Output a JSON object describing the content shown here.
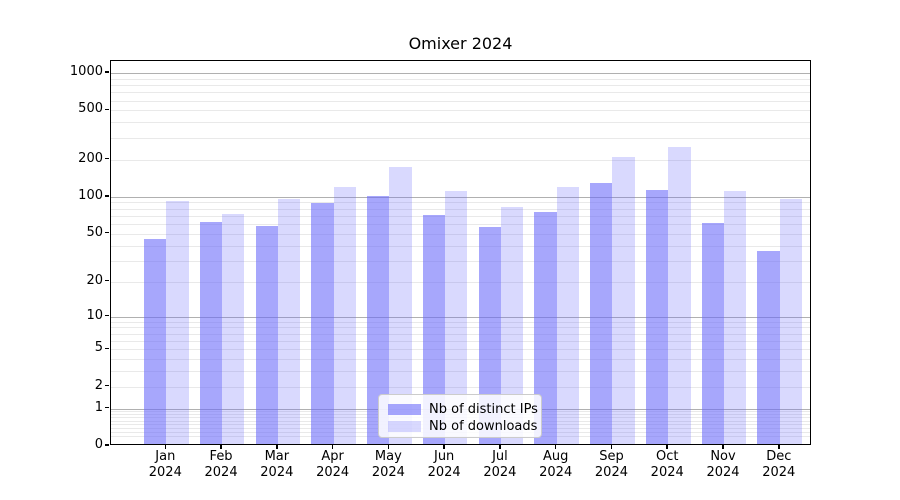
{
  "title": "Omixer 2024",
  "chart_data": {
    "type": "bar",
    "title": "Omixer 2024",
    "categories": [
      "Jan",
      "Feb",
      "Mar",
      "Apr",
      "May",
      "Jun",
      "Jul",
      "Aug",
      "Sep",
      "Oct",
      "Nov",
      "Dec"
    ],
    "year_label": "2024",
    "series": [
      {
        "name": "Nb of distinct IPs",
        "color": "rgba(104,104,250,0.58)",
        "values": [
          44,
          60,
          56,
          86,
          98,
          69,
          55,
          72,
          126,
          109,
          59,
          35
        ]
      },
      {
        "name": "Nb of downloads",
        "color": "rgba(104,104,250,0.25)",
        "values": [
          89,
          70,
          93,
          115,
          168,
          107,
          79,
          115,
          204,
          243,
          108,
          92
        ]
      }
    ],
    "yscale": "log1p",
    "yticks": [
      0,
      1,
      2,
      5,
      10,
      20,
      50,
      100,
      200,
      500,
      1000
    ],
    "major_gridlines": [
      1,
      10,
      100,
      1000
    ],
    "minor_gridline_bases": [
      0.1,
      1,
      10,
      100
    ],
    "ylim": [
      0,
      1238
    ],
    "grid": true,
    "legend_position": "lower center",
    "colors": {
      "major_grid": "#b0b0b0",
      "minor_grid": "#e9e9e9",
      "axis": "#000000"
    }
  }
}
